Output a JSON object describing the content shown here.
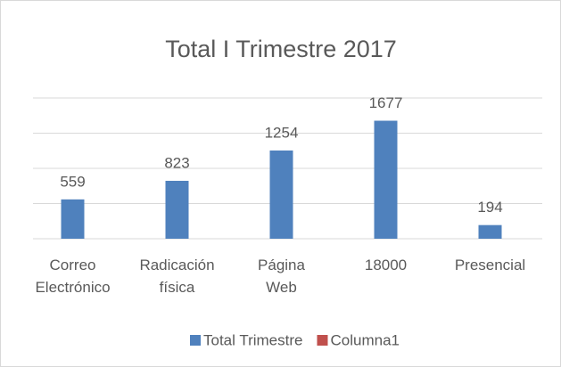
{
  "chart_data": {
    "type": "bar",
    "title": "Total  I Trimestre 2017",
    "categories": [
      "Correo Electrónico",
      "Radicación física",
      "Página Web",
      "18000",
      "Presencial"
    ],
    "series": [
      {
        "name": "Total Trimestre",
        "color": "#4f81bd",
        "values": [
          559,
          823,
          1254,
          1677,
          194
        ]
      },
      {
        "name": "Columna1",
        "color": "#c0504d",
        "values": [
          null,
          null,
          null,
          null,
          null
        ]
      }
    ],
    "ylim": [
      0,
      2000
    ],
    "yticks": [
      0,
      500,
      1000,
      1500,
      2000
    ],
    "grid": true,
    "legend": "bottom"
  }
}
